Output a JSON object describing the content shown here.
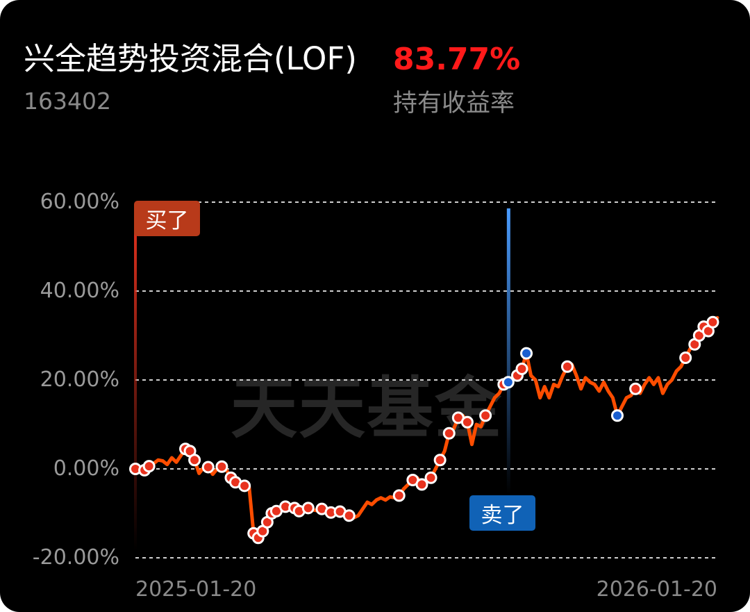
{
  "fund": {
    "name": "兴全趋势投资混合(LOF)",
    "code": "163402",
    "holding_return": "83.77%",
    "holding_return_label": "持有收益率"
  },
  "watermark": "天天基金",
  "markers": {
    "buy_label": "买了",
    "sell_label": "卖了"
  },
  "colors": {
    "line": "#ff4d00",
    "buy_dot": "#e8321e",
    "sell_dot": "#1a5fd0",
    "buy_badge": "#b83a1a",
    "sell_badge": "#1062b6",
    "return_value": "#ff1a1a"
  },
  "chart_data": {
    "type": "line",
    "ylim": [
      -20,
      60
    ],
    "y_ticks": [
      "60.00%",
      "40.00%",
      "20.00%",
      "0.00%",
      "-20.00%"
    ],
    "x_ticks": [
      "2025-01-20",
      "2026-01-20"
    ],
    "grid": "horizontal-dashed",
    "series": [
      {
        "values": [
          0.0,
          0.2,
          -0.3,
          0.6,
          1.2,
          2.0,
          1.8,
          1.0,
          2.5,
          1.5,
          3.0,
          4.5,
          4.0,
          2.0,
          -1.0,
          0.3,
          0.4,
          -1.2,
          0.0,
          0.5,
          -0.2,
          -2.0,
          -3.0,
          -3.5,
          -3.8,
          -4.0,
          -14.5,
          -15.5,
          -14.0,
          -12.0,
          -10.0,
          -9.5,
          -9.0,
          -8.5,
          -8.2,
          -8.8,
          -9.5,
          -9.0,
          -8.8,
          -9.2,
          -9.4,
          -9.0,
          -9.5,
          -9.8,
          -10.0,
          -9.6,
          -10.0,
          -10.5,
          -11.0,
          -10.5,
          -9.0,
          -7.5,
          -8.0,
          -7.0,
          -6.5,
          -7.0,
          -6.3,
          -6.5,
          -6.0,
          -4.5,
          -3.5,
          -2.5,
          -2.0,
          -3.5,
          -3.0,
          -2.0,
          0.0,
          2.0,
          4.0,
          8.0,
          9.0,
          11.5,
          12.0,
          10.5,
          5.5,
          10.0,
          9.5,
          12.0,
          14.0,
          16.0,
          17.0,
          19.0,
          19.5,
          20.0,
          21.0,
          22.5,
          26.0,
          21.0,
          20.0,
          16.0,
          18.5,
          16.0,
          19.0,
          18.5,
          21.0,
          23.0,
          23.5,
          21.0,
          18.0,
          20.5,
          19.5,
          19.0,
          17.5,
          19.5,
          17.5,
          16.0,
          12.0,
          14.0,
          16.0,
          16.5,
          18.0,
          17.0,
          19.0,
          20.5,
          19.0,
          20.5,
          17.0,
          19.0,
          20.0,
          22.0,
          23.0,
          25.0,
          27.0,
          28.0,
          30.0,
          32.0,
          31.0,
          33.0,
          34.0
        ]
      }
    ],
    "buy_points": [
      0,
      2,
      3,
      11,
      12,
      13,
      16,
      19,
      21,
      22,
      24,
      26,
      27,
      28,
      29,
      30,
      31,
      33,
      35,
      36,
      38,
      41,
      43,
      45,
      47,
      58,
      61,
      63,
      65,
      67,
      69,
      71,
      73,
      77,
      81,
      84,
      85,
      95,
      110,
      121,
      123,
      124,
      125,
      126,
      127
    ],
    "sell_points": [
      82,
      86,
      106
    ],
    "buy_date_index": 0,
    "sell_date_index": 82
  }
}
